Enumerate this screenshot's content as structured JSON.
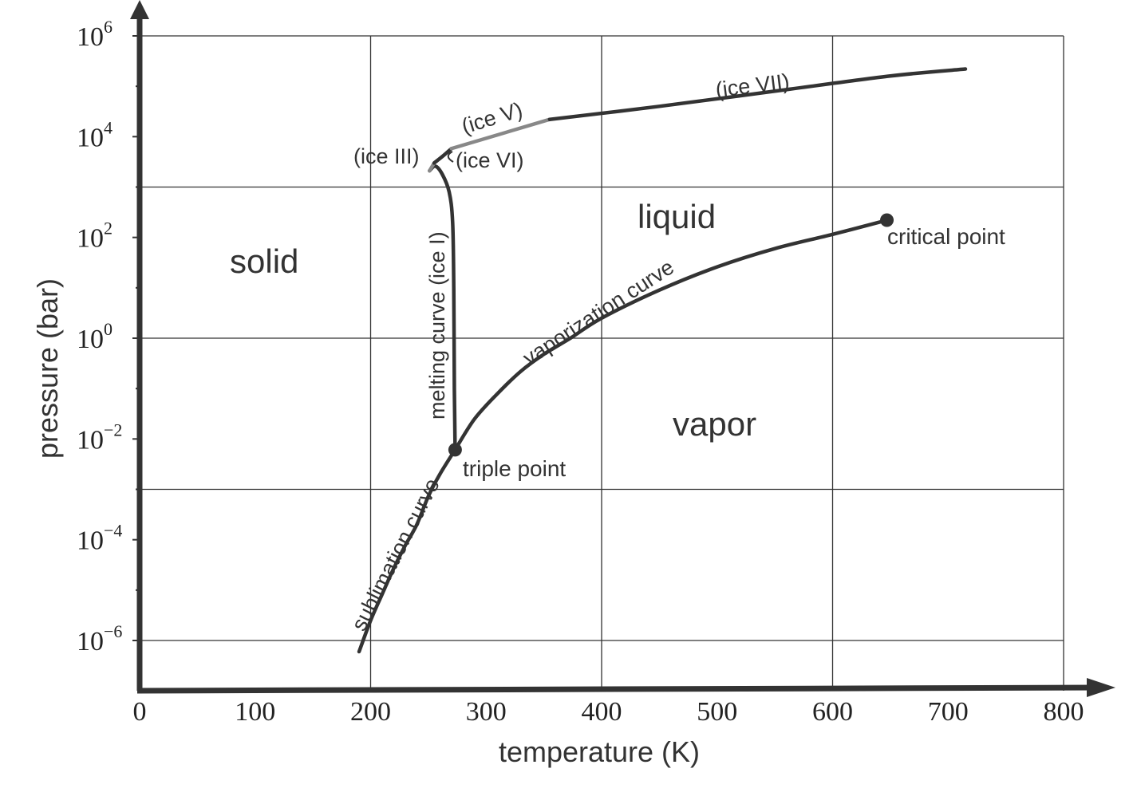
{
  "chart_data": {
    "type": "line",
    "title": "",
    "xlabel": "temperature (K)",
    "ylabel": "pressure (bar)",
    "xlim": [
      0,
      800
    ],
    "ylim_log10": [
      -8,
      6
    ],
    "yscale": "log",
    "grid": true,
    "x_ticks": [
      "0",
      "100",
      "200",
      "300",
      "400",
      "500",
      "600",
      "700",
      "800"
    ],
    "y_ticks": [
      {
        "base": "10",
        "exp": "6",
        "value_log10": 6
      },
      {
        "base": "10",
        "exp": "4",
        "value_log10": 4
      },
      {
        "base": "10",
        "exp": "2",
        "value_log10": 2
      },
      {
        "base": "10",
        "exp": "0",
        "value_log10": 0
      },
      {
        "base": "10",
        "exp": "−2",
        "value_log10": -2
      },
      {
        "base": "10",
        "exp": "−4",
        "value_log10": -4
      },
      {
        "base": "10",
        "exp": "−6",
        "value_log10": -6
      }
    ],
    "region_labels": {
      "solid": "solid",
      "liquid": "liquid",
      "vapor": "vapor"
    },
    "series": [
      {
        "name": "sublimation curve",
        "color": "#333333",
        "points": [
          [
            190,
            6e-07
          ],
          [
            200,
            2.5e-06
          ],
          [
            210,
            8.3e-06
          ],
          [
            220,
            2.7e-05
          ],
          [
            230,
            7.7e-05
          ],
          [
            240,
            0.0002
          ],
          [
            250,
            0.00073
          ],
          [
            260,
            0.002
          ],
          [
            273.16,
            0.0061
          ]
        ]
      },
      {
        "name": "vaporization curve",
        "color": "#333333",
        "points": [
          [
            273.16,
            0.0061
          ],
          [
            290,
            0.025
          ],
          [
            310,
            0.08
          ],
          [
            330,
            0.22
          ],
          [
            350,
            0.48
          ],
          [
            373,
            1.0
          ],
          [
            400,
            2.5
          ],
          [
            450,
            9.0
          ],
          [
            500,
            26
          ],
          [
            550,
            60
          ],
          [
            600,
            115
          ],
          [
            647,
            220
          ]
        ]
      },
      {
        "name": "melting curve (ice I)",
        "color": "#333333",
        "points": [
          [
            273.16,
            0.0061
          ],
          [
            272.5,
            0.1
          ],
          [
            272,
            10
          ],
          [
            271,
            200
          ],
          [
            268,
            800
          ],
          [
            262,
            1800
          ],
          [
            256,
            2600
          ],
          [
            251,
            2100
          ]
        ]
      },
      {
        "name": "(ice III)",
        "color": "#888888",
        "points": [
          [
            251,
            2100
          ],
          [
            255,
            3000
          ]
        ]
      },
      {
        "name": "(ice VI)",
        "color": "#333333",
        "points": [
          [
            255,
            3000
          ],
          [
            263,
            4200
          ],
          [
            270,
            5800
          ]
        ]
      },
      {
        "name": "(ice V)",
        "color": "#888888",
        "points": [
          [
            270,
            5800
          ],
          [
            355,
            22000
          ]
        ]
      },
      {
        "name": "(ice VII)",
        "color": "#333333",
        "points": [
          [
            355,
            22000
          ],
          [
            450,
            40000
          ],
          [
            550,
            80000
          ],
          [
            650,
            160000
          ],
          [
            715,
            220000
          ]
        ]
      }
    ],
    "points": [
      {
        "name": "triple point",
        "label": "triple point",
        "x": 273.16,
        "y": 0.0061
      },
      {
        "name": "critical point",
        "label": "critical point",
        "x": 647,
        "y": 220
      }
    ],
    "curve_labels": {
      "sublimation": "sublimation curve",
      "vaporization": "vaporization curve",
      "melting": "melting curve (ice I)",
      "ice3": "(ice III)",
      "ice5": "(ice V)",
      "ice6": "(ice VI)",
      "ice7": "(ice VII)"
    },
    "colors": {
      "axis": "#333333",
      "curve": "#333333",
      "curve_highlight": "#888888",
      "grid": "#333333"
    }
  }
}
